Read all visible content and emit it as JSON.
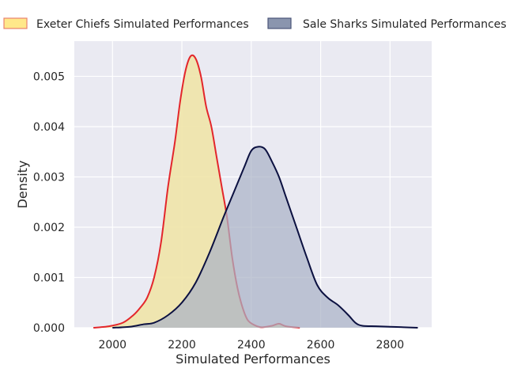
{
  "chart_data": {
    "type": "area",
    "title": "",
    "xlabel": "Simulated Performances",
    "ylabel": "Density",
    "xlim": [
      1890,
      2920
    ],
    "ylim": [
      0,
      0.0057
    ],
    "xticks": [
      2000,
      2200,
      2400,
      2600,
      2800
    ],
    "xtick_labels": [
      "2000",
      "2200",
      "2400",
      "2600",
      "2800"
    ],
    "yticks": [
      0,
      0.001,
      0.002,
      0.003,
      0.004,
      0.005
    ],
    "ytick_labels": [
      "0.000",
      "0.001",
      "0.002",
      "0.003",
      "0.004",
      "0.005"
    ],
    "grid": true,
    "legend_position": "top",
    "series": [
      {
        "name": "Exeter Chiefs Simulated Performances",
        "fill_color": "#f0e4a8",
        "line_color": "#e3262b",
        "legend_fill": "#ffe88a",
        "legend_edge": "#e8826e",
        "points": [
          [
            1945,
            0.0
          ],
          [
            1990,
            3e-05
          ],
          [
            2030,
            0.0001
          ],
          [
            2060,
            0.00025
          ],
          [
            2080,
            0.0004
          ],
          [
            2100,
            0.0006
          ],
          [
            2120,
            0.001
          ],
          [
            2140,
            0.0017
          ],
          [
            2160,
            0.0028
          ],
          [
            2180,
            0.0037
          ],
          [
            2195,
            0.0045
          ],
          [
            2210,
            0.0051
          ],
          [
            2225,
            0.0054
          ],
          [
            2240,
            0.00535
          ],
          [
            2255,
            0.005
          ],
          [
            2270,
            0.0044
          ],
          [
            2285,
            0.004
          ],
          [
            2300,
            0.0034
          ],
          [
            2315,
            0.0028
          ],
          [
            2330,
            0.0022
          ],
          [
            2345,
            0.0014
          ],
          [
            2360,
            0.0008
          ],
          [
            2375,
            0.0004
          ],
          [
            2390,
            0.00015
          ],
          [
            2410,
            5e-05
          ],
          [
            2430,
            1e-05
          ],
          [
            2460,
            4e-05
          ],
          [
            2480,
            8e-05
          ],
          [
            2500,
            3e-05
          ],
          [
            2540,
            0.0
          ]
        ]
      },
      {
        "name": "Sale Sharks Simulated Performances",
        "fill_color": "#abb3c6",
        "line_color": "#0b1040",
        "legend_fill": "#8a95ae",
        "legend_edge": "#4a5578",
        "points": [
          [
            2000,
            0.0
          ],
          [
            2050,
            2e-05
          ],
          [
            2090,
            7e-05
          ],
          [
            2120,
            0.0001
          ],
          [
            2160,
            0.00025
          ],
          [
            2200,
            0.0005
          ],
          [
            2240,
            0.0009
          ],
          [
            2280,
            0.0015
          ],
          [
            2320,
            0.0022
          ],
          [
            2350,
            0.0027
          ],
          [
            2380,
            0.0032
          ],
          [
            2400,
            0.00352
          ],
          [
            2420,
            0.0036
          ],
          [
            2440,
            0.00355
          ],
          [
            2460,
            0.0033
          ],
          [
            2480,
            0.003
          ],
          [
            2500,
            0.0026
          ],
          [
            2530,
            0.002
          ],
          [
            2560,
            0.0014
          ],
          [
            2590,
            0.00085
          ],
          [
            2620,
            0.0006
          ],
          [
            2650,
            0.00045
          ],
          [
            2680,
            0.00025
          ],
          [
            2700,
            0.0001
          ],
          [
            2720,
            4e-05
          ],
          [
            2760,
            3e-05
          ],
          [
            2800,
            2e-05
          ],
          [
            2840,
            1e-05
          ],
          [
            2880,
            0.0
          ]
        ]
      }
    ]
  },
  "colors": {
    "plot_background": "#eaeaf2",
    "grid": "#ffffff",
    "text": "#262626"
  }
}
